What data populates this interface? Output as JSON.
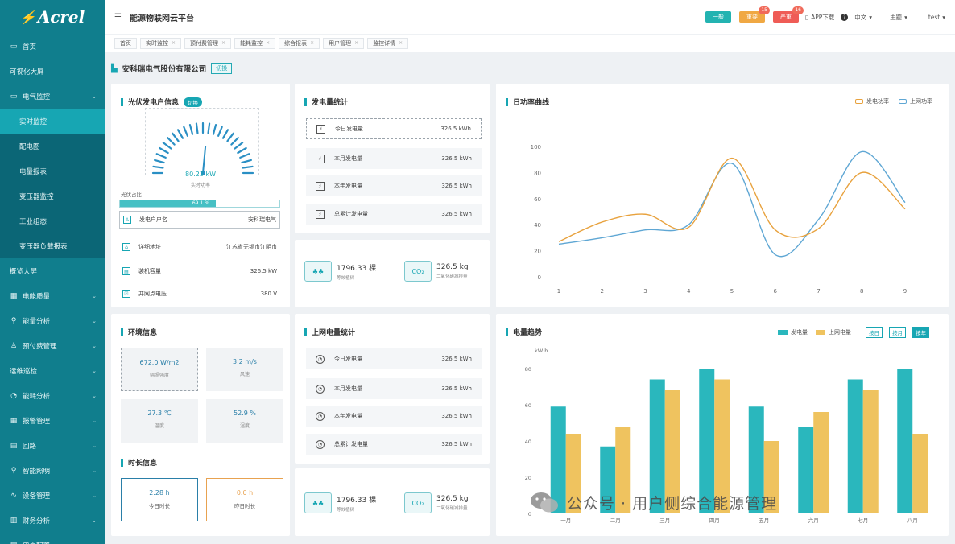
{
  "sidebar": {
    "logo": "Acrel",
    "items": [
      {
        "label": "首页",
        "icon": "monitor-icon",
        "sub": false,
        "chev": false
      },
      {
        "label": "可视化大屏",
        "icon": "",
        "sub": false,
        "chev": false
      },
      {
        "label": "电气监控",
        "icon": "monitor-icon",
        "sub": false,
        "chev": true
      },
      {
        "label": "实时监控",
        "icon": "",
        "sub": true,
        "active": true
      },
      {
        "label": "配电图",
        "icon": "",
        "sub": true
      },
      {
        "label": "电量报表",
        "icon": "",
        "sub": true
      },
      {
        "label": "变压器监控",
        "icon": "",
        "sub": true
      },
      {
        "label": "工业组态",
        "icon": "",
        "sub": true
      },
      {
        "label": "变压器负载报表",
        "icon": "",
        "sub": true
      },
      {
        "label": "概览大屏",
        "icon": "",
        "sub": false,
        "chev": false
      },
      {
        "label": "电能质量",
        "icon": "grid-icon",
        "sub": false,
        "chev": true
      },
      {
        "label": "能量分析",
        "icon": "network-icon",
        "sub": false,
        "chev": true
      },
      {
        "label": "预付费管理",
        "icon": "user-icon",
        "sub": false,
        "chev": true
      },
      {
        "label": "运维巡检",
        "icon": "",
        "sub": false,
        "chev": true
      },
      {
        "label": "能耗分析",
        "icon": "chart-icon",
        "sub": false,
        "chev": true
      },
      {
        "label": "报警管理",
        "icon": "grid-icon",
        "sub": false,
        "chev": true
      },
      {
        "label": "回路",
        "icon": "doc-icon",
        "sub": false,
        "chev": true
      },
      {
        "label": "智能照明",
        "icon": "pin-icon",
        "sub": false,
        "chev": true
      },
      {
        "label": "设备管理",
        "icon": "wave-icon",
        "sub": false,
        "chev": true
      },
      {
        "label": "财务分析",
        "icon": "bar-icon",
        "sub": false,
        "chev": true
      },
      {
        "label": "用户配置",
        "icon": "doc-icon",
        "sub": false,
        "chev": true
      }
    ]
  },
  "header": {
    "title": "能源物联网云平台",
    "tags": [
      {
        "label": "一般",
        "count": "",
        "cls": "t1"
      },
      {
        "label": "重要",
        "count": "15",
        "cls": "t2"
      },
      {
        "label": "严重",
        "count": "16",
        "cls": "t3"
      }
    ],
    "app_download": "APP下载",
    "language": "中文",
    "theme": "主题",
    "user": "test"
  },
  "tabs": [
    "首页",
    "实时监控",
    "预付费管理",
    "能耗监控",
    "综合报表",
    "用户管理",
    "监控详情"
  ],
  "company": {
    "name": "安科瑞电气股份有限公司",
    "switch_label": "切换"
  },
  "pv_info": {
    "title": "光伏发电户信息",
    "badge": "切换",
    "gauge_value": "80.23 kW",
    "gauge_label": "实时功率",
    "gauge_fraction": 0.53,
    "ratio_label": "光伏占比",
    "ratio_value": "69.1 %",
    "ratio_fraction": 0.6,
    "rows": [
      {
        "icon": "user-icon",
        "key": "发电户户名",
        "value": "安科瑞电气"
      },
      {
        "icon": "home-icon",
        "key": "详细地址",
        "value": "江苏省无锡市江阴市"
      },
      {
        "icon": "doc-icon",
        "key": "装机容量",
        "value": "326.5 kW"
      },
      {
        "icon": "check-icon",
        "key": "并网点电压",
        "value": "380 V"
      }
    ]
  },
  "generation_stats": {
    "title": "发电量统计",
    "rows": [
      {
        "key": "今日发电量",
        "value": "326.5 kWh"
      },
      {
        "key": "本月发电量",
        "value": "326.5 kWh"
      },
      {
        "key": "本年发电量",
        "value": "326.5 kWh"
      },
      {
        "key": "总累计发电量",
        "value": "326.5 kWh"
      }
    ]
  },
  "eco_top": {
    "tree_value": "1796.33 棵",
    "tree_label": "等效植树",
    "co2_value": "326.5 kg",
    "co2_label": "二氧化碳减排量",
    "co2_icon_text": "CO₂"
  },
  "daily_efficiency": {
    "title": "日功率曲线",
    "legend": [
      "发电功率",
      "上网功率"
    ]
  },
  "env_info": {
    "title": "环境信息",
    "items": [
      {
        "value": "672.0 W/m2",
        "label": "辐照强度"
      },
      {
        "value": "3.2 m/s",
        "label": "风速"
      },
      {
        "value": "27.3 ℃",
        "label": "温度"
      },
      {
        "value": "52.9 %",
        "label": "湿度"
      }
    ]
  },
  "hours_info": {
    "title": "时长信息",
    "items": [
      {
        "value": "2.28 h",
        "label": "今日时长",
        "color": "#2a7fa8"
      },
      {
        "value": "0.0 h",
        "label": "昨日时长",
        "color": "#e8a250"
      }
    ]
  },
  "grid_stats": {
    "title": "上网电量统计",
    "rows": [
      {
        "key": "今日发电量",
        "value": "326.5 kWh"
      },
      {
        "key": "本月发电量",
        "value": "326.5 kWh"
      },
      {
        "key": "本年发电量",
        "value": "326.5 kWh"
      },
      {
        "key": "总累计发电量",
        "value": "326.5 kWh"
      }
    ]
  },
  "eco_bottom": {
    "tree_value": "1796.33 棵",
    "tree_label": "等效植树",
    "co2_value": "326.5 kg",
    "co2_label": "二氧化碳减排量",
    "co2_icon_text": "CO₂"
  },
  "power_trend": {
    "title": "电量趋势",
    "legend": [
      "发电量",
      "上网电量"
    ],
    "range_buttons": [
      "按日",
      "按月",
      "按年"
    ],
    "active_range": 2
  },
  "watermark": "公众号 · 用户侧综合能源管理",
  "colors": {
    "primary": "#17a6b3",
    "sidebar": "#107e8d",
    "gen": "#2ab7bd",
    "grid": "#efc35f",
    "line_gen": "#5fa7d4",
    "line_grid": "#e8a23e"
  },
  "chart_data": [
    {
      "type": "line",
      "title": "日功率曲线",
      "x": [
        1,
        2,
        3,
        4,
        5,
        6,
        7,
        8,
        9
      ],
      "ylim": [
        0,
        100
      ],
      "yticks": [
        0,
        20,
        40,
        60,
        80,
        100
      ],
      "series": [
        {
          "name": "发电功率",
          "values": [
            25,
            30,
            36,
            40,
            87,
            17,
            44,
            96,
            57
          ]
        },
        {
          "name": "上网功率",
          "values": [
            27,
            42,
            48,
            38,
            91,
            36,
            37,
            80,
            52
          ]
        }
      ],
      "grid": false,
      "legend": "top-right"
    },
    {
      "type": "bar",
      "title": "电量趋势",
      "ylabel": "kW·h",
      "categories": [
        "一月",
        "二月",
        "三月",
        "四月",
        "五月",
        "六月",
        "七月",
        "八月"
      ],
      "ylim": [
        0,
        80
      ],
      "yticks": [
        0,
        20,
        40,
        60,
        80
      ],
      "series": [
        {
          "name": "发电量",
          "values": [
            59,
            37,
            74,
            80,
            59,
            48,
            74,
            80
          ]
        },
        {
          "name": "上网电量",
          "values": [
            44,
            48,
            68,
            74,
            40,
            56,
            68,
            44
          ]
        }
      ],
      "legend": "top-right"
    }
  ]
}
